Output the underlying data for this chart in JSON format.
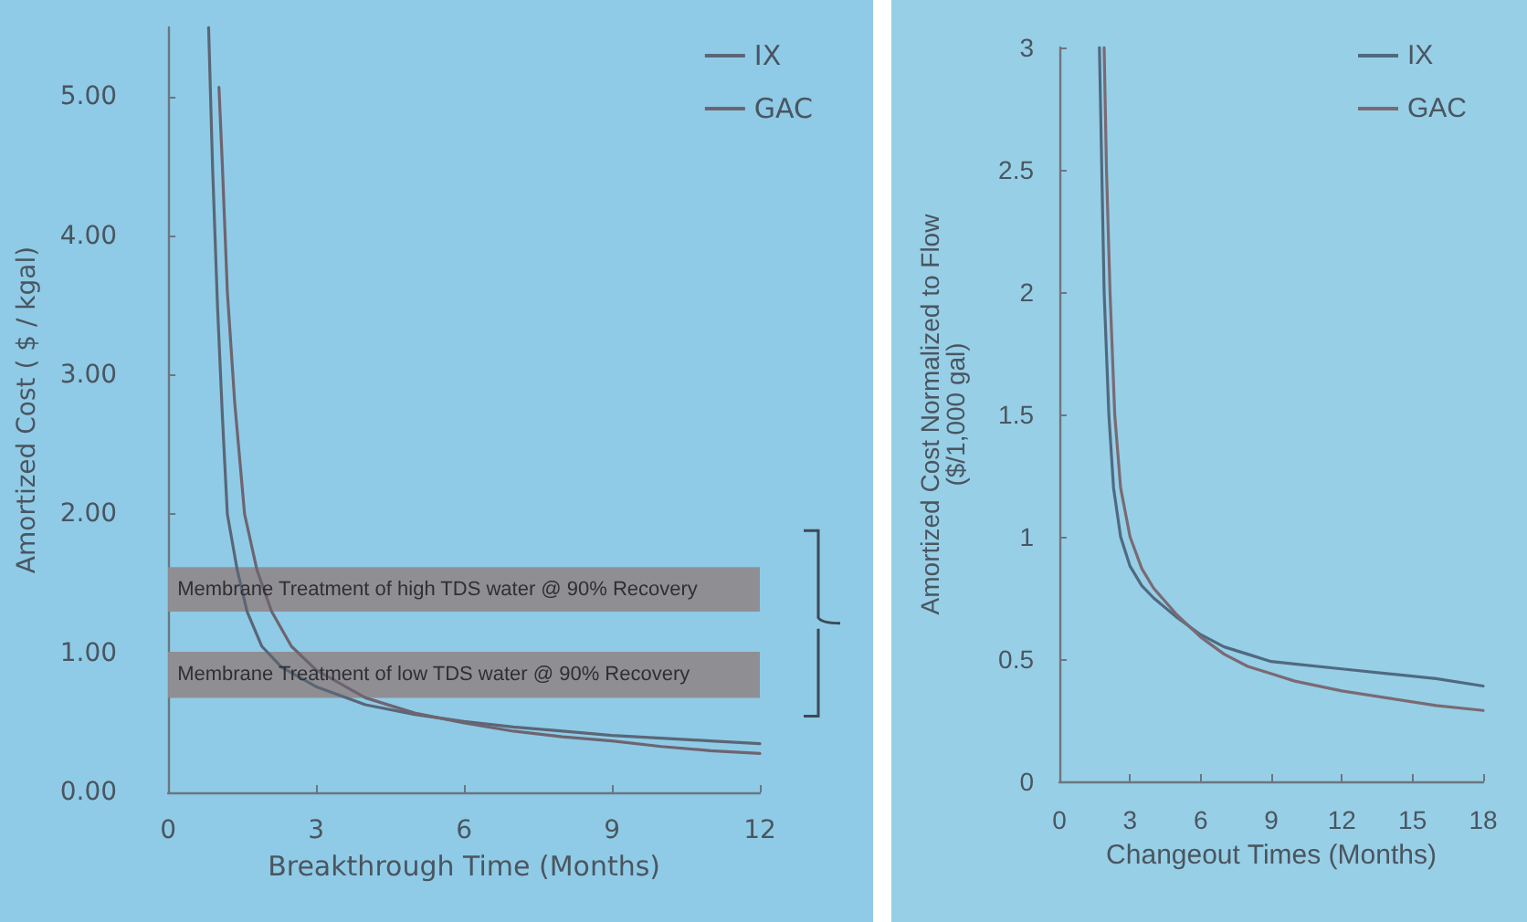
{
  "chart_data": [
    {
      "type": "line",
      "xlabel": "Breakthrough Time (Months)",
      "ylabel": "Amortized Cost ( $ / kgal)",
      "xlim": [
        0,
        12
      ],
      "xticks": [
        0,
        3,
        6,
        9,
        12
      ],
      "ylim": [
        0,
        5.5
      ],
      "yticks": [
        {
          "value": 0,
          "label": "0.00"
        },
        {
          "value": 1,
          "label": "1.00"
        },
        {
          "value": 2,
          "label": "2.00"
        },
        {
          "value": 3,
          "label": "3.00"
        },
        {
          "value": 4,
          "label": "4.00"
        },
        {
          "value": 5,
          "label": "5.00"
        }
      ],
      "grid": false,
      "legend": "top right",
      "marker": "none",
      "line_style": "solid",
      "bands": [
        {
          "axis": "y",
          "from": 1.3,
          "to": 1.62,
          "label": "Membrane Treatment of high TDS water @ 90% Recovery",
          "color": "#8f8f93"
        },
        {
          "axis": "y",
          "from": 0.68,
          "to": 1.01,
          "label": "Membrane Treatment of low TDS water @ 90% Recovery",
          "color": "#8f8f93"
        }
      ],
      "series": [
        {
          "name": "IX",
          "color": "#5a6676",
          "x": [
            0.82,
            0.9,
            1.0,
            1.1,
            1.2,
            1.4,
            1.6,
            1.9,
            2.3,
            3,
            4,
            5,
            6,
            7,
            8,
            9,
            10,
            11,
            12
          ],
          "values": [
            5.5,
            4.5,
            3.5,
            2.7,
            2.0,
            1.6,
            1.3,
            1.05,
            0.9,
            0.76,
            0.63,
            0.56,
            0.51,
            0.47,
            0.44,
            0.41,
            0.39,
            0.37,
            0.35
          ]
        },
        {
          "name": "GAC",
          "color": "#6e6470",
          "x": [
            1.03,
            1.1,
            1.2,
            1.35,
            1.55,
            1.8,
            2.1,
            2.5,
            3,
            4,
            5,
            6,
            7,
            8,
            9,
            10,
            11,
            12
          ],
          "values": [
            5.07,
            4.5,
            3.6,
            2.8,
            2.0,
            1.6,
            1.3,
            1.05,
            0.88,
            0.68,
            0.57,
            0.5,
            0.44,
            0.4,
            0.37,
            0.33,
            0.3,
            0.28
          ]
        }
      ]
    },
    {
      "type": "line",
      "xlabel": "Changeout Times (Months)",
      "ylabel": "Amortized Cost Normalized to Flow\n($/1,000 gal)",
      "xlim": [
        0,
        18
      ],
      "xticks": [
        0,
        3,
        6,
        9,
        12,
        15,
        18
      ],
      "ylim": [
        0,
        3
      ],
      "yticks": [
        0,
        0.5,
        1,
        1.5,
        2,
        2.5,
        3
      ],
      "grid": false,
      "legend": "top right",
      "marker": "none",
      "line_style": "solid",
      "series": [
        {
          "name": "IX",
          "color": "#4f6a80",
          "x": [
            1.7,
            1.8,
            1.9,
            2.1,
            2.3,
            2.6,
            3,
            3.5,
            4,
            5,
            6,
            7,
            8,
            9,
            10,
            12,
            14,
            16,
            18
          ],
          "values": [
            3,
            2.5,
            2.0,
            1.5,
            1.2,
            1.0,
            0.88,
            0.8,
            0.75,
            0.67,
            0.6,
            0.55,
            0.52,
            0.49,
            0.48,
            0.46,
            0.44,
            0.42,
            0.39
          ]
        },
        {
          "name": "GAC",
          "color": "#7a6a74",
          "x": [
            1.9,
            2.0,
            2.15,
            2.35,
            2.6,
            3.0,
            3.5,
            4,
            5,
            6,
            7,
            8,
            9,
            10,
            12,
            14,
            16,
            18
          ],
          "values": [
            3,
            2.5,
            2.0,
            1.5,
            1.2,
            1.0,
            0.87,
            0.79,
            0.68,
            0.59,
            0.52,
            0.47,
            0.44,
            0.41,
            0.37,
            0.34,
            0.31,
            0.29
          ]
        }
      ]
    }
  ]
}
